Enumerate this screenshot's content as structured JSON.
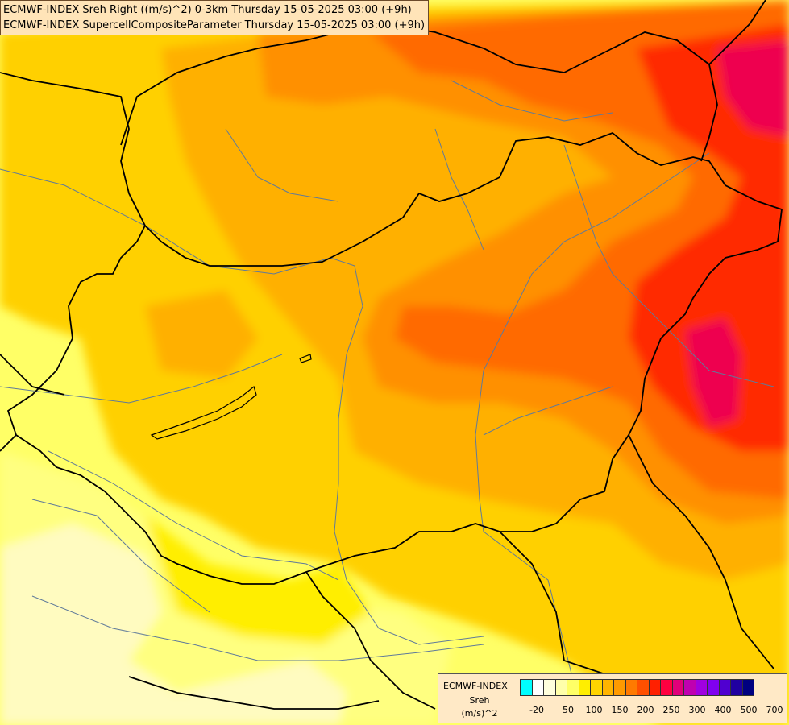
{
  "title_lines": [
    "ECMWF-INDEX Sreh Right ((m/s)^2) 0-3km Thursday 15-05-2025 03:00 (+9h)",
    "ECMWF-INDEX SupercellCompositeParameter Thursday 15-05-2025 03:00 (+9h)"
  ],
  "legend": {
    "title": "ECMWF-INDEX",
    "variable": "Sreh",
    "unit": "(m/s)^2",
    "colors": [
      "#00ffff",
      "#ffffff",
      "#ffffdd",
      "#ffffaa",
      "#ffff66",
      "#ffee00",
      "#ffd400",
      "#ffb400",
      "#ff9a00",
      "#ff7a00",
      "#ff5000",
      "#ff2000",
      "#ff0040",
      "#e0007a",
      "#c000b0",
      "#a000e0",
      "#8000f0",
      "#5000d0",
      "#2000a0",
      "#000080"
    ],
    "ticks": [
      "-20",
      "50",
      "100",
      "150",
      "200",
      "250",
      "300",
      "400",
      "500",
      "700"
    ]
  },
  "map_colors": {
    "pale": "#fffbc0",
    "light_yellow": "#ffff80",
    "yellow": "#ffee00",
    "gold": "#ffd000",
    "orange_light": "#ffb000",
    "orange": "#ff9000",
    "orange_dark": "#ff6a00",
    "red": "#ff2a00",
    "crimson": "#ee0050",
    "border": "#000000",
    "river": "#5f7a9a"
  }
}
